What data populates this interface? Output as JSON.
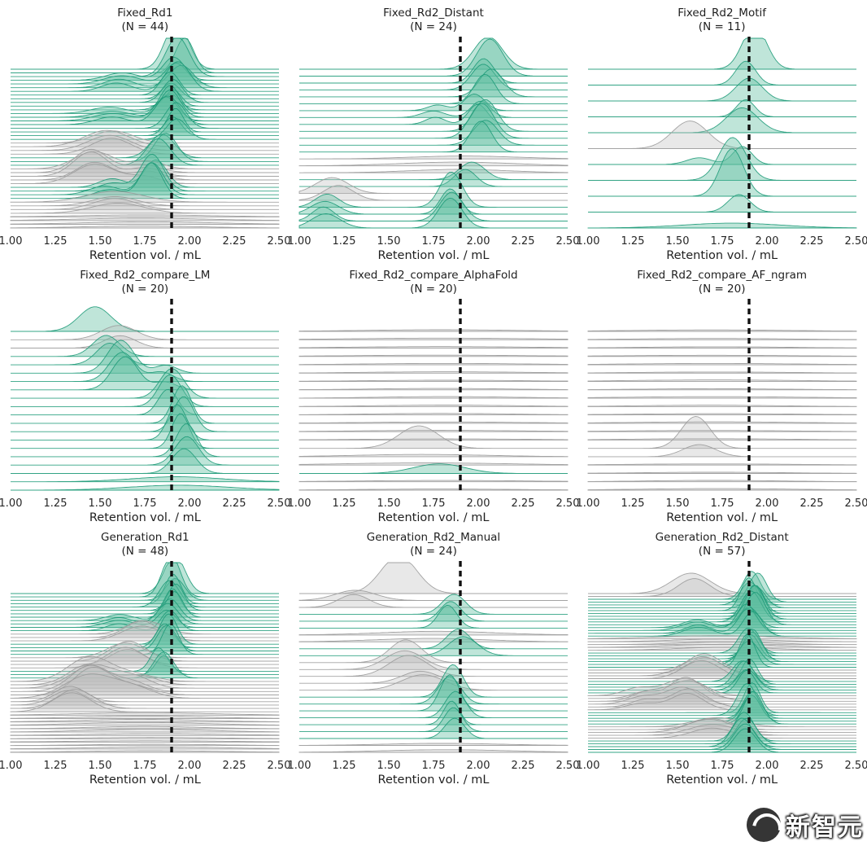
{
  "figure": {
    "xlabel": "Retention vol. / mL",
    "x_ticks": [
      "1.00",
      "1.25",
      "1.50",
      "1.75",
      "2.00",
      "2.25",
      "2.50"
    ],
    "x_min": 1.0,
    "x_max": 2.5,
    "dashed_line_x": 1.9,
    "colors": {
      "teal_fill": "#5fbfa0",
      "teal_stroke": "#1d9a78",
      "gray_fill": "#bcbcbc",
      "gray_stroke": "#9a9a9a",
      "dashed_line": "#111111",
      "background": "#ffffff"
    }
  },
  "watermark": {
    "text": "新智元"
  },
  "chart_data": [
    {
      "type": "area",
      "subtype": "ridgeline",
      "title": "Fixed_Rd1",
      "n_label": "(N = 44)",
      "n": 44,
      "xlabel": "Retention vol. / mL",
      "x_range": [
        1.0,
        2.5
      ],
      "dashed_line_x": 1.9,
      "ridge_groups": [
        {
          "count": 3,
          "color": "teal",
          "bumps": [
            [
              1.95,
              0.06,
              1.5
            ]
          ]
        },
        {
          "count": 4,
          "color": "teal",
          "bumps": [
            [
              1.93,
              0.06,
              0.9
            ],
            [
              1.6,
              0.09,
              0.3
            ]
          ]
        },
        {
          "count": 5,
          "color": "teal",
          "bumps": [
            [
              1.9,
              0.05,
              0.7
            ]
          ]
        },
        {
          "count": 4,
          "color": "teal",
          "bumps": [
            [
              1.88,
              0.06,
              1.0
            ],
            [
              1.55,
              0.1,
              0.25
            ]
          ]
        },
        {
          "count": 4,
          "color": "teal",
          "bumps": [
            [
              1.92,
              0.05,
              0.8
            ]
          ]
        },
        {
          "count": 4,
          "color": "gray",
          "bumps": [
            [
              1.55,
              0.12,
              0.5
            ]
          ]
        },
        {
          "count": 3,
          "color": "teal",
          "bumps": [
            [
              1.85,
              0.06,
              0.9
            ]
          ]
        },
        {
          "count": 5,
          "color": "gray",
          "bumps": [
            [
              1.47,
              0.1,
              0.75
            ],
            [
              1.75,
              0.09,
              0.3
            ]
          ]
        },
        {
          "count": 4,
          "color": "teal",
          "bumps": [
            [
              1.8,
              0.06,
              1.2
            ],
            [
              1.55,
              0.08,
              0.35
            ]
          ]
        },
        {
          "count": 4,
          "color": "gray",
          "bumps": [
            [
              1.6,
              0.14,
              0.35
            ]
          ]
        },
        {
          "count": 4,
          "color": "gray",
          "bumps": [
            [
              1.75,
              0.35,
              0.08
            ]
          ]
        }
      ]
    },
    {
      "type": "area",
      "subtype": "ridgeline",
      "title": "Fixed_Rd2_Distant",
      "n_label": "(N = 24)",
      "n": 24,
      "xlabel": "Retention vol. / mL",
      "x_range": [
        1.0,
        2.5
      ],
      "dashed_line_x": 1.9,
      "ridge_groups": [
        {
          "count": 2,
          "color": "teal",
          "bumps": [
            [
              2.05,
              0.08,
              1.4
            ]
          ]
        },
        {
          "count": 4,
          "color": "teal",
          "bumps": [
            [
              2.05,
              0.06,
              0.9
            ]
          ]
        },
        {
          "count": 3,
          "color": "teal",
          "bumps": [
            [
              2.0,
              0.06,
              0.7
            ],
            [
              1.75,
              0.06,
              0.25
            ]
          ]
        },
        {
          "count": 4,
          "color": "teal",
          "bumps": [
            [
              2.02,
              0.06,
              1.05
            ]
          ]
        },
        {
          "count": 3,
          "color": "gray",
          "bumps": [
            [
              1.9,
              0.3,
              0.12
            ]
          ]
        },
        {
          "count": 2,
          "color": "teal",
          "bumps": [
            [
              1.95,
              0.07,
              0.6
            ]
          ]
        },
        {
          "count": 2,
          "color": "gray",
          "bumps": [
            [
              1.2,
              0.08,
              0.65
            ]
          ]
        },
        {
          "count": 4,
          "color": "teal",
          "bumps": [
            [
              1.85,
              0.06,
              1.1
            ],
            [
              1.15,
              0.07,
              0.45
            ]
          ]
        }
      ]
    },
    {
      "type": "area",
      "subtype": "ridgeline",
      "title": "Fixed_Rd2_Motif",
      "n_label": "(N = 11)",
      "n": 11,
      "xlabel": "Retention vol. / mL",
      "x_range": [
        1.0,
        2.5
      ],
      "dashed_line_x": 1.9,
      "ridge_groups": [
        {
          "count": 1,
          "color": "teal",
          "bumps": [
            [
              1.92,
              0.07,
              1.4
            ]
          ]
        },
        {
          "count": 1,
          "color": "teal",
          "bumps": [
            [
              1.9,
              0.06,
              0.8
            ]
          ]
        },
        {
          "count": 1,
          "color": "teal",
          "bumps": [
            [
              1.88,
              0.07,
              1.0
            ]
          ]
        },
        {
          "count": 1,
          "color": "teal",
          "bumps": [
            [
              1.9,
              0.05,
              0.6
            ]
          ]
        },
        {
          "count": 1,
          "color": "teal",
          "bumps": [
            [
              1.85,
              0.08,
              0.9
            ]
          ]
        },
        {
          "count": 1,
          "color": "gray",
          "bumps": [
            [
              1.55,
              0.09,
              1.0
            ]
          ]
        },
        {
          "count": 1,
          "color": "teal",
          "bumps": [
            [
              1.88,
              0.06,
              0.8
            ],
            [
              1.6,
              0.08,
              0.3
            ]
          ]
        },
        {
          "count": 1,
          "color": "teal",
          "bumps": [
            [
              1.82,
              0.07,
              1.3
            ]
          ]
        },
        {
          "count": 1,
          "color": "teal",
          "bumps": [
            [
              1.78,
              0.06,
              1.5
            ]
          ]
        },
        {
          "count": 1,
          "color": "teal",
          "bumps": [
            [
              1.85,
              0.07,
              0.7
            ]
          ]
        },
        {
          "count": 1,
          "color": "teal",
          "bumps": [
            [
              1.8,
              0.3,
              0.15
            ]
          ]
        }
      ]
    },
    {
      "type": "area",
      "subtype": "ridgeline",
      "title": "Fixed_Rd2_compare_LM",
      "n_label": "(N = 20)",
      "n": 20,
      "xlabel": "Retention vol. / mL",
      "x_range": [
        1.0,
        2.5
      ],
      "dashed_line_x": 1.9,
      "ridge_groups": [
        {
          "count": 1,
          "color": "teal",
          "bumps": [
            [
              1.45,
              0.1,
              0.8
            ]
          ]
        },
        {
          "count": 2,
          "color": "gray",
          "bumps": [
            [
              1.6,
              0.1,
              0.5
            ]
          ]
        },
        {
          "count": 2,
          "color": "teal",
          "bumps": [
            [
              1.55,
              0.08,
              0.9
            ]
          ]
        },
        {
          "count": 3,
          "color": "teal",
          "bumps": [
            [
              1.62,
              0.07,
              1.0
            ],
            [
              1.85,
              0.06,
              0.35
            ]
          ]
        },
        {
          "count": 3,
          "color": "teal",
          "bumps": [
            [
              1.9,
              0.06,
              1.1
            ]
          ]
        },
        {
          "count": 4,
          "color": "teal",
          "bumps": [
            [
              1.95,
              0.05,
              1.3
            ]
          ]
        },
        {
          "count": 3,
          "color": "teal",
          "bumps": [
            [
              1.97,
              0.06,
              1.0
            ]
          ]
        },
        {
          "count": 2,
          "color": "teal",
          "bumps": [
            [
              1.95,
              0.25,
              0.2
            ]
          ]
        }
      ]
    },
    {
      "type": "area",
      "subtype": "ridgeline",
      "title": "Fixed_Rd2_compare_AlphaFold",
      "n_label": "(N = 20)",
      "n": 20,
      "xlabel": "Retention vol. / mL",
      "x_range": [
        1.0,
        2.5
      ],
      "dashed_line_x": 1.9,
      "ridge_groups": [
        {
          "count": 14,
          "color": "gray",
          "bumps": [
            [
              1.8,
              0.45,
              0.05
            ]
          ]
        },
        {
          "count": 1,
          "color": "gray",
          "bumps": [
            [
              1.65,
              0.1,
              1.0
            ]
          ]
        },
        {
          "count": 2,
          "color": "gray",
          "bumps": [
            [
              1.7,
              0.4,
              0.07
            ]
          ]
        },
        {
          "count": 1,
          "color": "teal",
          "bumps": [
            [
              1.78,
              0.15,
              0.35
            ]
          ]
        },
        {
          "count": 2,
          "color": "gray",
          "bumps": [
            [
              1.8,
              0.45,
              0.05
            ]
          ]
        }
      ]
    },
    {
      "type": "area",
      "subtype": "ridgeline",
      "title": "Fixed_Rd2_compare_AF_ngram",
      "n_label": "(N = 20)",
      "n": 20,
      "xlabel": "Retention vol. / mL",
      "x_range": [
        1.0,
        2.5
      ],
      "dashed_line_x": 1.9,
      "ridge_groups": [
        {
          "count": 14,
          "color": "gray",
          "bumps": [
            [
              1.7,
              0.45,
              0.05
            ]
          ]
        },
        {
          "count": 1,
          "color": "gray",
          "bumps": [
            [
              1.6,
              0.08,
              1.1
            ]
          ]
        },
        {
          "count": 1,
          "color": "gray",
          "bumps": [
            [
              1.62,
              0.1,
              0.5
            ]
          ]
        },
        {
          "count": 4,
          "color": "gray",
          "bumps": [
            [
              1.7,
              0.45,
              0.05
            ]
          ]
        }
      ]
    },
    {
      "type": "area",
      "subtype": "ridgeline",
      "title": "Generation_Rd1",
      "n_label": "(N = 48)",
      "n": 48,
      "xlabel": "Retention vol. / mL",
      "x_range": [
        1.0,
        2.5
      ],
      "dashed_line_x": 1.9,
      "ridge_groups": [
        {
          "count": 2,
          "color": "teal",
          "bumps": [
            [
              1.9,
              0.06,
              1.4
            ]
          ]
        },
        {
          "count": 6,
          "color": "teal",
          "bumps": [
            [
              1.9,
              0.05,
              0.9
            ]
          ]
        },
        {
          "count": 4,
          "color": "teal",
          "bumps": [
            [
              1.88,
              0.05,
              0.7
            ],
            [
              1.6,
              0.08,
              0.25
            ]
          ]
        },
        {
          "count": 3,
          "color": "gray",
          "bumps": [
            [
              1.75,
              0.1,
              0.55
            ]
          ]
        },
        {
          "count": 4,
          "color": "teal",
          "bumps": [
            [
              1.87,
              0.05,
              1.0
            ]
          ]
        },
        {
          "count": 4,
          "color": "gray",
          "bumps": [
            [
              1.65,
              0.1,
              0.65
            ]
          ]
        },
        {
          "count": 3,
          "color": "teal",
          "bumps": [
            [
              1.85,
              0.05,
              0.8
            ]
          ]
        },
        {
          "count": 6,
          "color": "gray",
          "bumps": [
            [
              1.45,
              0.12,
              0.85
            ],
            [
              1.7,
              0.1,
              0.3
            ]
          ]
        },
        {
          "count": 4,
          "color": "gray",
          "bumps": [
            [
              1.35,
              0.1,
              0.6
            ]
          ]
        },
        {
          "count": 6,
          "color": "gray",
          "bumps": [
            [
              1.75,
              0.35,
              0.1
            ]
          ]
        },
        {
          "count": 6,
          "color": "gray",
          "bumps": [
            [
              1.8,
              0.4,
              0.06
            ]
          ]
        }
      ]
    },
    {
      "type": "area",
      "subtype": "ridgeline",
      "title": "Generation_Rd2_Manual",
      "n_label": "(N = 24)",
      "n": 24,
      "xlabel": "Retention vol. / mL",
      "x_range": [
        1.0,
        2.5
      ],
      "dashed_line_x": 1.9,
      "ridge_groups": [
        {
          "count": 1,
          "color": "gray",
          "bumps": [
            [
              1.55,
              0.1,
              1.4
            ]
          ]
        },
        {
          "count": 2,
          "color": "gray",
          "bumps": [
            [
              1.3,
              0.1,
              0.45
            ]
          ]
        },
        {
          "count": 3,
          "color": "teal",
          "bumps": [
            [
              1.85,
              0.06,
              0.8
            ]
          ]
        },
        {
          "count": 2,
          "color": "gray",
          "bumps": [
            [
              1.75,
              0.3,
              0.12
            ]
          ]
        },
        {
          "count": 2,
          "color": "teal",
          "bumps": [
            [
              1.9,
              0.07,
              0.6
            ]
          ]
        },
        {
          "count": 3,
          "color": "gray",
          "bumps": [
            [
              1.6,
              0.1,
              0.7
            ]
          ]
        },
        {
          "count": 2,
          "color": "gray",
          "bumps": [
            [
              1.7,
              0.12,
              0.5
            ]
          ]
        },
        {
          "count": 4,
          "color": "teal",
          "bumps": [
            [
              1.85,
              0.06,
              1.1
            ]
          ]
        },
        {
          "count": 3,
          "color": "teal",
          "bumps": [
            [
              1.87,
              0.05,
              0.8
            ]
          ]
        },
        {
          "count": 2,
          "color": "gray",
          "bumps": [
            [
              1.8,
              0.35,
              0.08
            ]
          ]
        }
      ]
    },
    {
      "type": "area",
      "subtype": "ridgeline",
      "title": "Generation_Rd2_Distant",
      "n_label": "(N = 57)",
      "n": 57,
      "xlabel": "Retention vol. / mL",
      "x_range": [
        1.0,
        2.5
      ],
      "dashed_line_x": 1.9,
      "ridge_groups": [
        {
          "count": 2,
          "color": "gray",
          "bumps": [
            [
              1.6,
              0.1,
              0.75
            ]
          ]
        },
        {
          "count": 4,
          "color": "teal",
          "bumps": [
            [
              1.93,
              0.05,
              0.9
            ]
          ]
        },
        {
          "count": 6,
          "color": "teal",
          "bumps": [
            [
              1.92,
              0.05,
              1.15
            ]
          ]
        },
        {
          "count": 4,
          "color": "teal",
          "bumps": [
            [
              1.9,
              0.05,
              0.8
            ],
            [
              1.6,
              0.08,
              0.3
            ]
          ]
        },
        {
          "count": 5,
          "color": "gray",
          "bumps": [
            [
              1.75,
              0.3,
              0.1
            ]
          ]
        },
        {
          "count": 6,
          "color": "teal",
          "bumps": [
            [
              1.9,
              0.05,
              1.0
            ]
          ]
        },
        {
          "count": 4,
          "color": "gray",
          "bumps": [
            [
              1.65,
              0.1,
              0.6
            ]
          ]
        },
        {
          "count": 5,
          "color": "teal",
          "bumps": [
            [
              1.88,
              0.05,
              0.9
            ]
          ]
        },
        {
          "count": 6,
          "color": "gray",
          "bumps": [
            [
              1.55,
              0.1,
              0.65
            ],
            [
              1.3,
              0.08,
              0.25
            ]
          ]
        },
        {
          "count": 5,
          "color": "teal",
          "bumps": [
            [
              1.9,
              0.05,
              1.05
            ]
          ]
        },
        {
          "count": 5,
          "color": "gray",
          "bumps": [
            [
              1.7,
              0.12,
              0.4
            ]
          ]
        },
        {
          "count": 5,
          "color": "teal",
          "bumps": [
            [
              1.88,
              0.06,
              0.9
            ]
          ]
        }
      ]
    }
  ]
}
